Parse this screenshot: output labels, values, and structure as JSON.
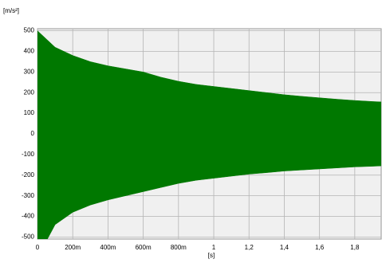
{
  "chart_data": {
    "type": "area",
    "y_label": "[m/s²]",
    "x_label": "[s]",
    "x": [
      0,
      0.1,
      0.2,
      0.3,
      0.4,
      0.5,
      0.6,
      0.7,
      0.8,
      0.9,
      1.0,
      1.1,
      1.2,
      1.3,
      1.4,
      1.5,
      1.6,
      1.7,
      1.8,
      1.9,
      1.95
    ],
    "series": [
      {
        "color": "#007800",
        "values": [
          500,
          420,
          380,
          350,
          330,
          315,
          300,
          275,
          255,
          240,
          230,
          220,
          210,
          200,
          190,
          182,
          175,
          168,
          162,
          157,
          155
        ]
      },
      {
        "color": "#007800",
        "values": [
          -600,
          -440,
          -380,
          -345,
          -320,
          -300,
          -280,
          -260,
          -240,
          -225,
          -215,
          -205,
          -195,
          -188,
          -180,
          -175,
          -170,
          -165,
          -160,
          -157,
          -155
        ]
      }
    ],
    "xlim": [
      0,
      1.95
    ],
    "ylim": [
      -510,
      510
    ],
    "xticks": [
      0,
      {
        "value": 0.2,
        "label": "200m"
      },
      {
        "value": 0.4,
        "label": "400m"
      },
      {
        "value": 0.6,
        "label": "600m"
      },
      {
        "value": 0.8,
        "label": "800m"
      },
      1,
      {
        "value": 1.2,
        "label": "1,2"
      },
      {
        "value": 1.4,
        "label": "1,4"
      },
      {
        "value": 1.6,
        "label": "1,6"
      },
      {
        "value": 1.8,
        "label": "1,8"
      }
    ],
    "yticks": [
      -500,
      -400,
      -300,
      -200,
      -100,
      0,
      100,
      200,
      300,
      400,
      500
    ],
    "grid": true,
    "background": "#f0f0f0"
  }
}
